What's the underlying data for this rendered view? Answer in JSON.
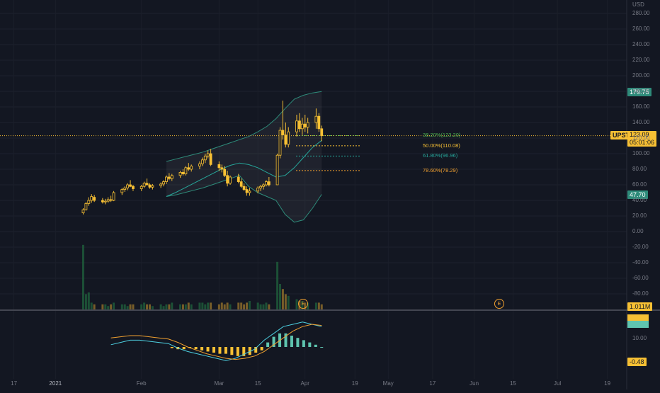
{
  "header": {
    "currency": "USD"
  },
  "symbol_tag": {
    "symbol": "UPST",
    "price": "123.09",
    "countdown": "05:01:06",
    "color": "#f7c034"
  },
  "bb_tags": {
    "upper": "179.75",
    "lower": "47.70",
    "color": "#2e8b7a"
  },
  "volume_tag": {
    "value": "1.011M",
    "color": "#f7c034"
  },
  "macd_tags": {
    "value": "-0.48",
    "tick": "10.00",
    "color": "#f7c034"
  },
  "earnings": [
    {
      "label": "E"
    },
    {
      "label": "E"
    }
  ],
  "fib_levels": [
    {
      "label": "38.20%(123.20)",
      "price": 123.2,
      "color": "#4caf50"
    },
    {
      "label": "50.00%(110.08)",
      "price": 110.08,
      "color": "#f7c034"
    },
    {
      "label": "61.80%(96.96)",
      "price": 96.96,
      "color": "#26a69a"
    },
    {
      "label": "78.60%(78.29)",
      "price": 78.29,
      "color": "#f0a030"
    }
  ],
  "chart_data": {
    "type": "candlestick",
    "symbol": "UPST",
    "y_ticks": [
      "280.00",
      "260.00",
      "240.00",
      "220.00",
      "200.00",
      "180.00",
      "160.00",
      "140.00",
      "120.00",
      "100.00",
      "80.00",
      "60.00",
      "40.00",
      "20.00",
      "0.00",
      "-20.00",
      "-40.00",
      "-60.00",
      "-80.00"
    ],
    "ylim": [
      -100,
      290
    ],
    "x_ticks": [
      {
        "label": "17",
        "date": "2020-12-17"
      },
      {
        "label": "2021",
        "date": "2021-01-01"
      },
      {
        "label": "Feb",
        "date": "2021-02-01"
      },
      {
        "label": "Mar",
        "date": "2021-03-01"
      },
      {
        "label": "15",
        "date": "2021-03-15"
      },
      {
        "label": "Apr",
        "date": "2021-04-01"
      },
      {
        "label": "19",
        "date": "2021-04-19"
      },
      {
        "label": "May",
        "date": "2021-05-01"
      },
      {
        "label": "17",
        "date": "2021-05-17"
      },
      {
        "label": "Jun",
        "date": "2021-06-01"
      },
      {
        "label": "15",
        "date": "2021-06-15"
      },
      {
        "label": "Jul",
        "date": "2021-07-01"
      },
      {
        "label": "19",
        "date": "2021-07-19"
      }
    ],
    "x_range": [
      "2020-12-12",
      "2021-07-26"
    ],
    "last_date": "2021-04-07",
    "candles": [
      [
        24,
        30,
        22,
        28
      ],
      [
        28,
        38,
        27,
        36
      ],
      [
        36,
        44,
        33,
        40
      ],
      [
        40,
        48,
        37,
        45
      ],
      [
        44,
        47,
        38,
        40
      ],
      [
        40,
        43,
        36,
        38
      ],
      [
        38,
        42,
        35,
        39
      ],
      [
        39,
        44,
        37,
        41
      ],
      [
        41,
        46,
        38,
        40
      ],
      [
        40,
        52,
        39,
        50
      ],
      [
        50,
        56,
        47,
        54
      ],
      [
        54,
        58,
        51,
        56
      ],
      [
        56,
        62,
        53,
        60
      ],
      [
        60,
        66,
        57,
        58
      ],
      [
        58,
        60,
        52,
        55
      ],
      [
        55,
        60,
        52,
        58
      ],
      [
        58,
        64,
        56,
        62
      ],
      [
        62,
        68,
        59,
        60
      ],
      [
        60,
        62,
        55,
        57
      ],
      [
        57,
        61,
        54,
        59
      ],
      [
        59,
        63,
        56,
        61
      ],
      [
        61,
        66,
        58,
        64
      ],
      [
        64,
        72,
        61,
        70
      ],
      [
        70,
        75,
        66,
        68
      ],
      [
        68,
        74,
        65,
        72
      ],
      [
        72,
        78,
        69,
        76
      ],
      [
        76,
        80,
        72,
        74
      ],
      [
        74,
        84,
        72,
        82
      ],
      [
        82,
        88,
        78,
        80
      ],
      [
        80,
        86,
        77,
        84
      ],
      [
        84,
        90,
        80,
        87
      ],
      [
        87,
        95,
        84,
        92
      ],
      [
        92,
        100,
        88,
        97
      ],
      [
        97,
        104,
        94,
        100
      ],
      [
        100,
        106,
        84,
        86
      ],
      [
        86,
        90,
        78,
        82
      ],
      [
        82,
        86,
        76,
        80
      ],
      [
        80,
        84,
        70,
        72
      ],
      [
        72,
        78,
        58,
        62
      ],
      [
        62,
        72,
        60,
        70
      ],
      [
        70,
        74,
        62,
        64
      ],
      [
        64,
        68,
        56,
        58
      ],
      [
        58,
        62,
        52,
        54
      ],
      [
        54,
        58,
        46,
        50
      ],
      [
        50,
        56,
        46,
        52
      ],
      [
        52,
        58,
        49,
        56
      ],
      [
        56,
        60,
        52,
        58
      ],
      [
        58,
        62,
        54,
        60
      ],
      [
        60,
        66,
        58,
        64
      ],
      [
        64,
        70,
        58,
        60
      ],
      [
        60,
        100,
        60,
        98
      ],
      [
        98,
        134,
        94,
        130
      ],
      [
        130,
        168,
        118,
        124
      ],
      [
        124,
        140,
        108,
        112
      ],
      [
        112,
        134,
        108,
        128
      ],
      [
        128,
        150,
        122,
        142
      ],
      [
        142,
        152,
        128,
        132
      ],
      [
        132,
        146,
        124,
        138
      ],
      [
        138,
        150,
        128,
        134
      ],
      [
        134,
        146,
        126,
        140
      ],
      [
        140,
        158,
        132,
        148
      ],
      [
        148,
        152,
        128,
        132
      ],
      [
        132,
        136,
        116,
        123
      ]
    ],
    "bollinger_upper": [
      90,
      93,
      96,
      99,
      102,
      106,
      110,
      114,
      118,
      122,
      128,
      135,
      145,
      158,
      170,
      175,
      178,
      179.75
    ],
    "bollinger_middle": [
      45,
      50,
      56,
      62,
      68,
      74,
      80,
      85,
      88,
      86,
      82,
      76,
      70,
      72,
      82,
      95,
      108,
      117
    ],
    "bollinger_lower": [
      45,
      47,
      50,
      53,
      56,
      60,
      64,
      68,
      72,
      58,
      50,
      45,
      40,
      22,
      12,
      15,
      30,
      47.7
    ],
    "volume": [
      38,
      9,
      10,
      4,
      3,
      3,
      3,
      2,
      3,
      4,
      3,
      3,
      2,
      3,
      3,
      3,
      4,
      3,
      3,
      2,
      3,
      2,
      3,
      3,
      4,
      3,
      3,
      3,
      4,
      3,
      4,
      4,
      3,
      4,
      4,
      3,
      4,
      3,
      4,
      3,
      4,
      4,
      3,
      4,
      5,
      4,
      3,
      3,
      4,
      3,
      28,
      15,
      12,
      9,
      8,
      6,
      5,
      5,
      4,
      4,
      4,
      4,
      3
    ],
    "macd_line": [
      2,
      4,
      6,
      6,
      5,
      4,
      3,
      -1,
      -4,
      -6,
      -8,
      -10,
      -12,
      -10,
      -6,
      -2,
      6,
      12,
      18,
      20,
      22,
      20,
      18
    ],
    "macd_signal": [
      8,
      9,
      10,
      10,
      9,
      8,
      7,
      4,
      0,
      -3,
      -6,
      -8,
      -10,
      -11,
      -10,
      -8,
      -4,
      2,
      8,
      14,
      18,
      20,
      19
    ],
    "macd_histogram": [
      -1,
      -2,
      -2,
      -1,
      -2,
      -3,
      -4,
      -5,
      -6,
      -6,
      -7,
      -8,
      -8,
      -7,
      -5,
      -3,
      4,
      9,
      12,
      12,
      10,
      8,
      6,
      4,
      2,
      0
    ]
  }
}
